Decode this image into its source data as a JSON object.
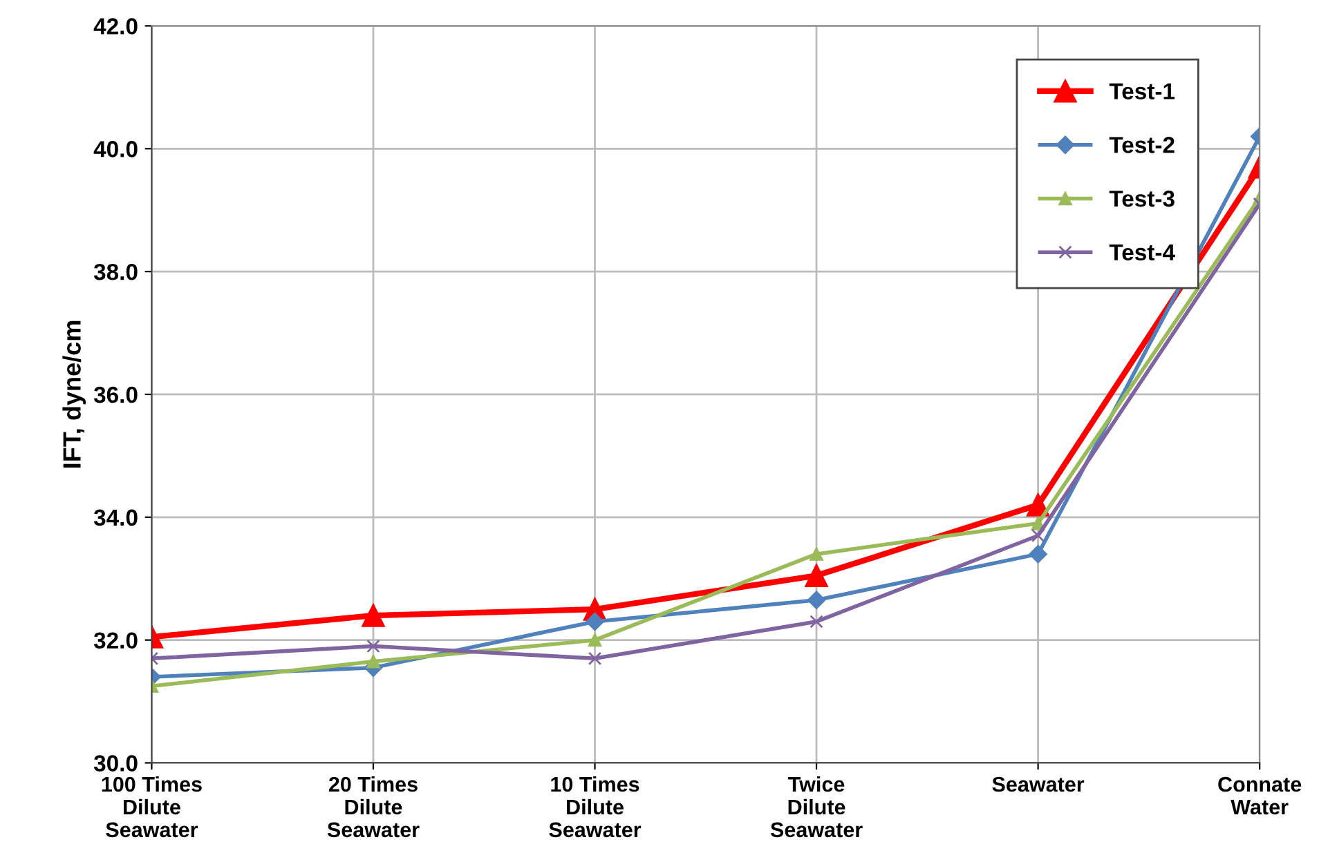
{
  "chart_data": {
    "type": "line",
    "ylabel": "IFT, dyne/cm",
    "grid": true,
    "legend": "top right",
    "categories": [
      "100 Times\nDilute\nSeawater",
      "20 Times\nDilute\nSeawater",
      "10 Times\nDilute\nSeawater",
      "Twice\nDilute\nSeawater",
      "Seawater",
      "Connate\nWater"
    ],
    "ylim": [
      30,
      42
    ],
    "yticks": [
      {
        "value": 30,
        "label": "30.0"
      },
      {
        "value": 32,
        "label": "32.0"
      },
      {
        "value": 34,
        "label": "34.0"
      },
      {
        "value": 36,
        "label": "36.0"
      },
      {
        "value": 38,
        "label": "38.0"
      },
      {
        "value": 40,
        "label": "40.0"
      },
      {
        "value": 42,
        "label": "42.0"
      }
    ],
    "series": [
      {
        "name": "Test-1",
        "color": "#ff0000",
        "marker": "triangle",
        "values": [
          32.05,
          32.4,
          32.5,
          33.05,
          34.2,
          39.7
        ]
      },
      {
        "name": "Test-2",
        "color": "#4f81bd",
        "marker": "diamond",
        "values": [
          31.4,
          31.55,
          32.3,
          32.65,
          33.4,
          40.2
        ]
      },
      {
        "name": "Test-3",
        "color": "#9bbb59",
        "marker": "triangle",
        "values": [
          31.25,
          31.65,
          32.0,
          33.4,
          33.9,
          39.2
        ]
      },
      {
        "name": "Test-4",
        "color": "#8064a2",
        "marker": "cross",
        "values": [
          31.7,
          31.9,
          31.7,
          32.3,
          33.7,
          39.1
        ]
      }
    ]
  }
}
